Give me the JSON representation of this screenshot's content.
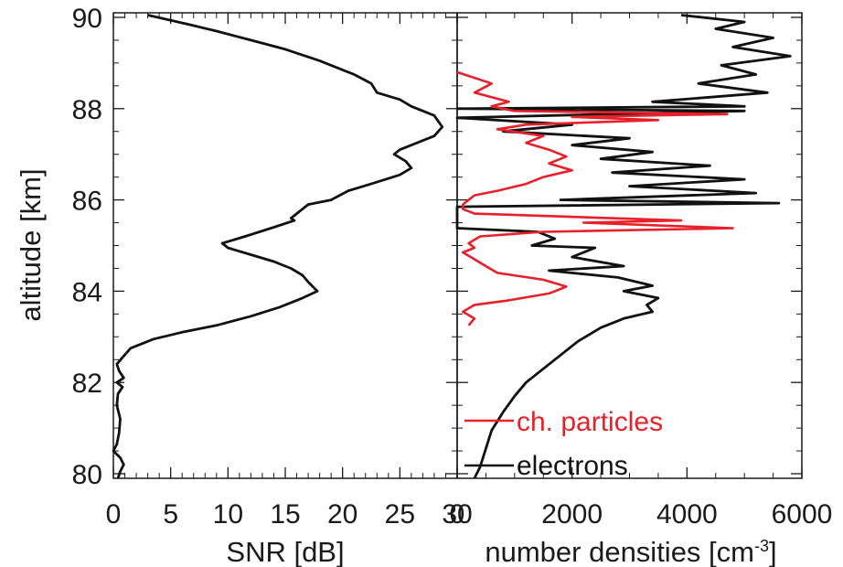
{
  "chart_data": [
    {
      "type": "line",
      "panel": "left",
      "title": "",
      "xlabel": "SNR [dB]",
      "ylabel": "altitude [km]",
      "xlim": [
        0,
        30
      ],
      "ylim": [
        79.9,
        90.1
      ],
      "xticks": [
        0,
        5,
        10,
        15,
        20,
        25,
        30
      ],
      "yticks": [
        80,
        82,
        84,
        86,
        88,
        90
      ],
      "grid": false,
      "series": [
        {
          "color": "#111111",
          "points": [
            [
              3.0,
              90.05
            ],
            [
              6.5,
              89.85
            ],
            [
              9.0,
              89.7
            ],
            [
              12.0,
              89.5
            ],
            [
              15.0,
              89.3
            ],
            [
              18.0,
              89.05
            ],
            [
              21.0,
              88.75
            ],
            [
              22.5,
              88.55
            ],
            [
              23.0,
              88.35
            ],
            [
              25.0,
              88.2
            ],
            [
              26.0,
              88.05
            ],
            [
              27.0,
              87.95
            ],
            [
              28.0,
              87.85
            ],
            [
              28.7,
              87.6
            ],
            [
              28.0,
              87.4
            ],
            [
              26.5,
              87.25
            ],
            [
              25.0,
              87.1
            ],
            [
              24.5,
              87.0
            ],
            [
              25.5,
              86.85
            ],
            [
              26.0,
              86.7
            ],
            [
              25.0,
              86.55
            ],
            [
              22.5,
              86.35
            ],
            [
              20.5,
              86.2
            ],
            [
              19.0,
              86.0
            ],
            [
              17.0,
              85.9
            ],
            [
              16.0,
              85.7
            ],
            [
              15.5,
              85.6
            ],
            [
              15.8,
              85.55
            ],
            [
              14.0,
              85.4
            ],
            [
              11.5,
              85.2
            ],
            [
              9.5,
              85.05
            ],
            [
              10.0,
              84.95
            ],
            [
              12.0,
              84.8
            ],
            [
              14.0,
              84.65
            ],
            [
              15.5,
              84.5
            ],
            [
              16.5,
              84.35
            ],
            [
              17.0,
              84.2
            ],
            [
              17.8,
              84.0
            ],
            [
              16.5,
              83.85
            ],
            [
              14.5,
              83.65
            ],
            [
              12.0,
              83.45
            ],
            [
              9.0,
              83.25
            ],
            [
              6.0,
              83.1
            ],
            [
              3.5,
              82.95
            ],
            [
              1.5,
              82.75
            ],
            [
              0.8,
              82.55
            ],
            [
              0.3,
              82.4
            ],
            [
              0.5,
              82.25
            ],
            [
              0.9,
              82.1
            ],
            [
              0.3,
              82.0
            ],
            [
              0.8,
              81.9
            ],
            [
              0.4,
              81.75
            ],
            [
              0.3,
              81.5
            ],
            [
              0.6,
              81.2
            ],
            [
              0.5,
              80.9
            ],
            [
              0.3,
              80.65
            ],
            [
              0.0,
              80.5
            ],
            [
              0.6,
              80.35
            ],
            [
              0.9,
              80.2
            ],
            [
              0.6,
              80.05
            ],
            [
              0.4,
              79.9
            ]
          ]
        }
      ]
    },
    {
      "type": "line",
      "panel": "right",
      "title": "",
      "xlabel": "number densities [cm",
      "xlabel_sup": "-3",
      "xlabel_end": "]",
      "ylabel": "",
      "xlim": [
        0,
        6000
      ],
      "ylim": [
        79.9,
        90.1
      ],
      "xticks": [
        0,
        2000,
        4000,
        6000
      ],
      "yticks": [
        80,
        82,
        84,
        86,
        88,
        90
      ],
      "grid": false,
      "legend_position": "bottom-left",
      "series": [
        {
          "name": "ch. particles",
          "color": "#e8202a",
          "points": [
            [
              0,
              88.8
            ],
            [
              600,
              88.55
            ],
            [
              300,
              88.35
            ],
            [
              900,
              88.15
            ],
            [
              600,
              88.05
            ],
            [
              1000,
              87.95
            ],
            [
              4700,
              87.88
            ],
            [
              2000,
              87.82
            ],
            [
              3500,
              87.75
            ],
            [
              1200,
              87.65
            ],
            [
              700,
              87.55
            ],
            [
              1500,
              87.4
            ],
            [
              1200,
              87.25
            ],
            [
              1600,
              87.1
            ],
            [
              1900,
              86.95
            ],
            [
              1600,
              86.8
            ],
            [
              2000,
              86.65
            ],
            [
              1500,
              86.5
            ],
            [
              1200,
              86.35
            ],
            [
              700,
              86.2
            ],
            [
              300,
              86.1
            ],
            [
              200,
              86.0
            ],
            [
              100,
              85.9
            ],
            [
              100,
              85.8
            ],
            [
              300,
              85.7
            ],
            [
              3900,
              85.55
            ],
            [
              2200,
              85.5
            ],
            [
              4800,
              85.38
            ],
            [
              1500,
              85.3
            ],
            [
              400,
              85.2
            ],
            [
              200,
              85.05
            ],
            [
              300,
              84.95
            ],
            [
              100,
              84.85
            ],
            [
              300,
              84.7
            ],
            [
              500,
              84.55
            ],
            [
              700,
              84.4
            ],
            [
              1500,
              84.25
            ],
            [
              1900,
              84.1
            ],
            [
              1600,
              83.95
            ],
            [
              900,
              83.8
            ],
            [
              300,
              83.7
            ],
            [
              100,
              83.55
            ],
            [
              300,
              83.4
            ],
            [
              200,
              83.25
            ]
          ]
        },
        {
          "name": "electrons",
          "color": "#111111",
          "points": [
            [
              3900,
              90.05
            ],
            [
              5000,
              89.9
            ],
            [
              4500,
              89.75
            ],
            [
              5500,
              89.55
            ],
            [
              4800,
              89.35
            ],
            [
              5800,
              89.15
            ],
            [
              4600,
              88.95
            ],
            [
              5200,
              88.75
            ],
            [
              4200,
              88.55
            ],
            [
              5400,
              88.35
            ],
            [
              3400,
              88.15
            ],
            [
              5000,
              88.05
            ],
            [
              0,
              88.0
            ],
            [
              5000,
              87.95
            ],
            [
              0,
              87.8
            ],
            [
              2000,
              87.65
            ],
            [
              800,
              87.5
            ],
            [
              3000,
              87.35
            ],
            [
              2000,
              87.2
            ],
            [
              3400,
              87.05
            ],
            [
              2500,
              86.9
            ],
            [
              4400,
              86.75
            ],
            [
              2700,
              86.6
            ],
            [
              5000,
              86.45
            ],
            [
              3000,
              86.3
            ],
            [
              5200,
              86.15
            ],
            [
              1800,
              86.0
            ],
            [
              5600,
              85.93
            ],
            [
              0,
              85.85
            ],
            [
              0,
              85.38
            ],
            [
              1400,
              85.3
            ],
            [
              1700,
              85.15
            ],
            [
              1300,
              85.0
            ],
            [
              2400,
              84.95
            ],
            [
              2000,
              84.75
            ],
            [
              2900,
              84.55
            ],
            [
              1600,
              84.45
            ],
            [
              2800,
              84.3
            ],
            [
              3400,
              84.12
            ],
            [
              2900,
              84.0
            ],
            [
              3500,
              83.85
            ],
            [
              3300,
              83.7
            ],
            [
              3400,
              83.55
            ],
            [
              2900,
              83.4
            ],
            [
              2500,
              83.2
            ],
            [
              2100,
              82.9
            ],
            [
              1800,
              82.6
            ],
            [
              1500,
              82.3
            ],
            [
              1200,
              82.0
            ],
            [
              1000,
              81.7
            ],
            [
              800,
              81.35
            ],
            [
              600,
              80.95
            ],
            [
              500,
              80.55
            ],
            [
              400,
              80.15
            ],
            [
              300,
              79.9
            ]
          ]
        }
      ]
    }
  ],
  "tick_labels": {
    "left_x": [
      "0",
      "5",
      "10",
      "15",
      "20",
      "25",
      "30"
    ],
    "right_x": [
      "0",
      "2000",
      "4000",
      "6000"
    ],
    "y": [
      "80",
      "82",
      "84",
      "86",
      "88",
      "90"
    ]
  }
}
